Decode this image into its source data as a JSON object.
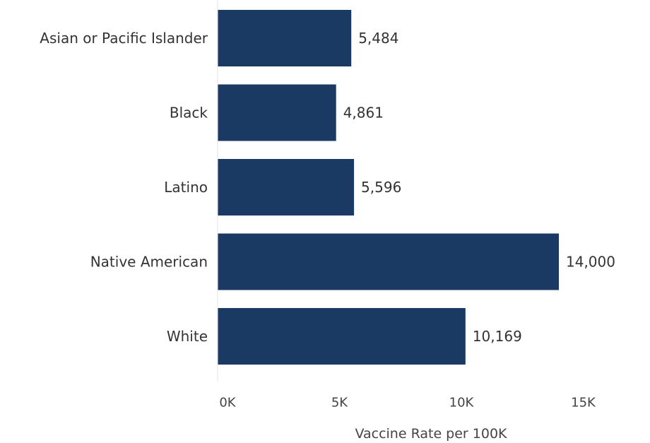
{
  "chart_data": {
    "type": "bar",
    "orientation": "horizontal",
    "title": "",
    "xlabel": "Vaccine Rate per 100K",
    "ylabel": "",
    "categories": [
      "Asian or Pacific Islander",
      "Black",
      "Latino",
      "Native American",
      "White"
    ],
    "series": [
      {
        "values": [
          5484,
          4861,
          5596,
          14000,
          10169
        ],
        "value_labels": [
          "5,484",
          "4,861",
          "5,596",
          "14,000",
          "10,169"
        ]
      }
    ],
    "xlim": [
      0,
      17500
    ],
    "xticks": [
      0,
      5000,
      10000,
      15000
    ],
    "xtick_labels": [
      "0K",
      "5K",
      "10K",
      "15K"
    ],
    "grid": false,
    "legend": "none",
    "bar_color": "#1a3a63",
    "axis_color": "#e4e4e4"
  }
}
